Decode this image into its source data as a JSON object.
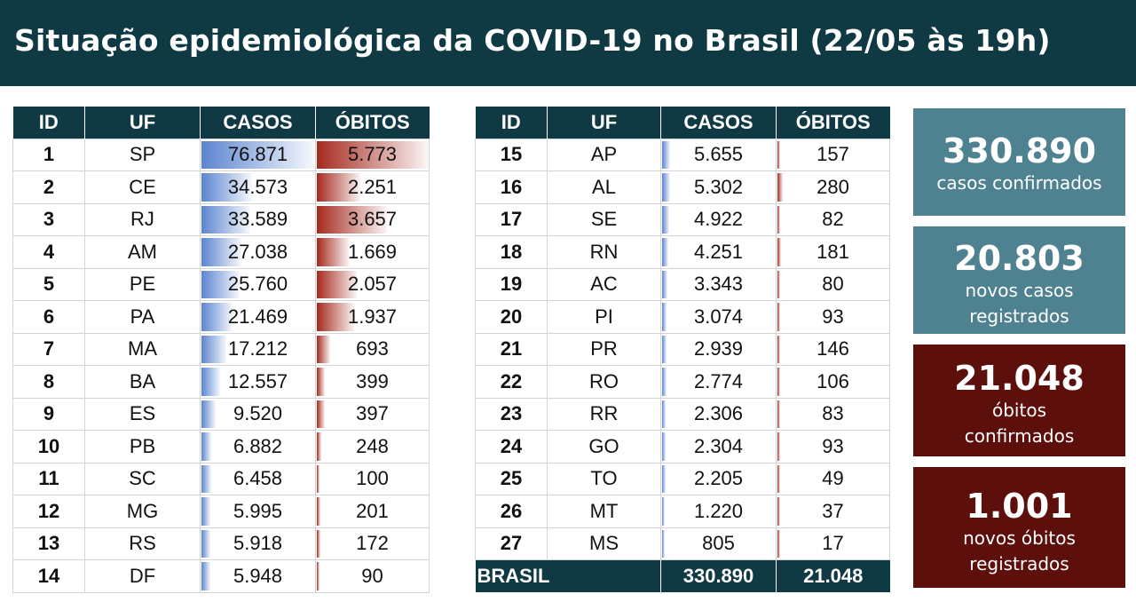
{
  "header": {
    "title": "Situação epidemiológica da COVID-19 no Brasil (22/05 às 19h)"
  },
  "table": {
    "columns": [
      "ID",
      "UF",
      "CASOS",
      "ÓBITOS"
    ],
    "total": {
      "label": "BRASIL",
      "casos": "330.890",
      "obitos": "21.048"
    }
  },
  "chart_data": {
    "type": "table",
    "columns": [
      "ID",
      "UF",
      "CASOS",
      "ÓBITOS"
    ],
    "rows": [
      {
        "id": 1,
        "uf": "SP",
        "casos": 76871,
        "obitos": 5773
      },
      {
        "id": 2,
        "uf": "CE",
        "casos": 34573,
        "obitos": 2251
      },
      {
        "id": 3,
        "uf": "RJ",
        "casos": 33589,
        "obitos": 3657
      },
      {
        "id": 4,
        "uf": "AM",
        "casos": 27038,
        "obitos": 1669
      },
      {
        "id": 5,
        "uf": "PE",
        "casos": 25760,
        "obitos": 2057
      },
      {
        "id": 6,
        "uf": "PA",
        "casos": 21469,
        "obitos": 1937
      },
      {
        "id": 7,
        "uf": "MA",
        "casos": 17212,
        "obitos": 693
      },
      {
        "id": 8,
        "uf": "BA",
        "casos": 12557,
        "obitos": 399
      },
      {
        "id": 9,
        "uf": "ES",
        "casos": 9520,
        "obitos": 397
      },
      {
        "id": 10,
        "uf": "PB",
        "casos": 6882,
        "obitos": 248
      },
      {
        "id": 11,
        "uf": "SC",
        "casos": 6458,
        "obitos": 100
      },
      {
        "id": 12,
        "uf": "MG",
        "casos": 5995,
        "obitos": 201
      },
      {
        "id": 13,
        "uf": "RS",
        "casos": 5918,
        "obitos": 172
      },
      {
        "id": 14,
        "uf": "DF",
        "casos": 5948,
        "obitos": 90
      },
      {
        "id": 15,
        "uf": "AP",
        "casos": 5655,
        "obitos": 157
      },
      {
        "id": 16,
        "uf": "AL",
        "casos": 5302,
        "obitos": 280
      },
      {
        "id": 17,
        "uf": "SE",
        "casos": 4922,
        "obitos": 82
      },
      {
        "id": 18,
        "uf": "RN",
        "casos": 4251,
        "obitos": 181
      },
      {
        "id": 19,
        "uf": "AC",
        "casos": 3343,
        "obitos": 80
      },
      {
        "id": 20,
        "uf": "PI",
        "casos": 3074,
        "obitos": 93
      },
      {
        "id": 21,
        "uf": "PR",
        "casos": 2939,
        "obitos": 146
      },
      {
        "id": 22,
        "uf": "RO",
        "casos": 2774,
        "obitos": 106
      },
      {
        "id": 23,
        "uf": "RR",
        "casos": 2306,
        "obitos": 83
      },
      {
        "id": 24,
        "uf": "GO",
        "casos": 2304,
        "obitos": 93
      },
      {
        "id": 25,
        "uf": "TO",
        "casos": 2205,
        "obitos": 49
      },
      {
        "id": 26,
        "uf": "MT",
        "casos": 1220,
        "obitos": 37
      },
      {
        "id": 27,
        "uf": "MS",
        "casos": 805,
        "obitos": 17
      }
    ],
    "bars": {
      "casos_color": "#5b84d0",
      "obitos_color": "#a52a1e"
    }
  },
  "cards": [
    {
      "value": "330.890",
      "label_lines": [
        "casos confirmados"
      ],
      "color": "#4f8290"
    },
    {
      "value": "20.803",
      "label_lines": [
        "novos casos",
        "registrados"
      ],
      "color": "#4f8290"
    },
    {
      "value": "21.048",
      "label_lines": [
        "óbitos",
        "confirmados"
      ],
      "color": "#5d0f0c"
    },
    {
      "value": "1.001",
      "label_lines": [
        "novos óbitos",
        "registrados"
      ],
      "color": "#5d0f0c"
    }
  ]
}
